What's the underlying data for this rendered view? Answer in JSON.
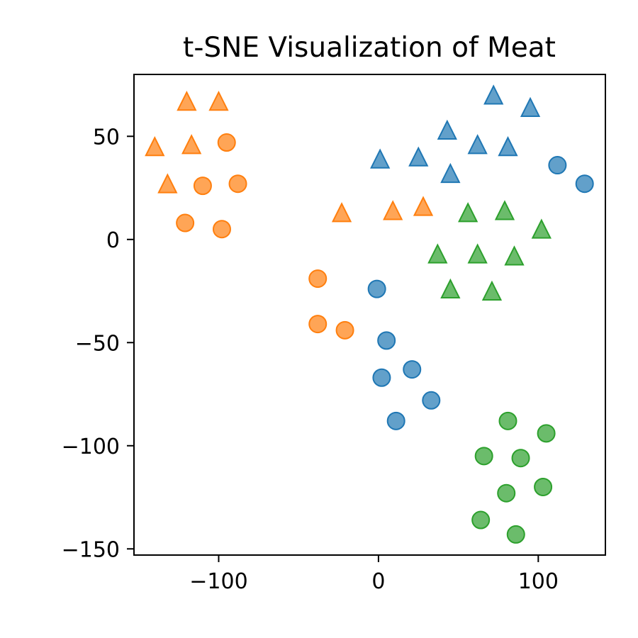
{
  "chart_data": {
    "type": "scatter",
    "title": "t-SNE Visualization of Meat",
    "xlabel": "",
    "ylabel": "",
    "xlim": [
      -153,
      142
    ],
    "ylim": [
      -153,
      80
    ],
    "xticks": [
      -100,
      0,
      100
    ],
    "yticks": [
      50,
      0,
      -50,
      -100,
      -150
    ],
    "xtick_labels": [
      "−100",
      "0",
      "100"
    ],
    "ytick_labels": [
      "50",
      "0",
      "−50",
      "−100",
      "−150"
    ],
    "grid": false,
    "legend": false,
    "colors": {
      "blue": "#1f77b4",
      "orange": "#ff7f0e",
      "green": "#2ca02c"
    },
    "series": [
      {
        "color": "#ff7f0e",
        "marker": "triangle",
        "points": [
          [
            -120,
            66
          ],
          [
            -100,
            66
          ],
          [
            -140,
            44
          ],
          [
            -117,
            45
          ],
          [
            -132,
            26
          ],
          [
            -23,
            12
          ],
          [
            9,
            13
          ],
          [
            28,
            15
          ]
        ]
      },
      {
        "color": "#ff7f0e",
        "marker": "circle",
        "points": [
          [
            -95,
            47
          ],
          [
            -110,
            26
          ],
          [
            -88,
            27
          ],
          [
            -121,
            8
          ],
          [
            -98,
            5
          ],
          [
            -38,
            -19
          ],
          [
            -38,
            -41
          ],
          [
            -21,
            -44
          ]
        ]
      },
      {
        "color": "#1f77b4",
        "marker": "triangle",
        "points": [
          [
            72,
            69
          ],
          [
            95,
            63
          ],
          [
            43,
            52
          ],
          [
            62,
            45
          ],
          [
            81,
            44
          ],
          [
            1,
            38
          ],
          [
            25,
            39
          ],
          [
            45,
            31
          ]
        ]
      },
      {
        "color": "#1f77b4",
        "marker": "circle",
        "points": [
          [
            112,
            36
          ],
          [
            129,
            27
          ],
          [
            -1,
            -24
          ],
          [
            5,
            -49
          ],
          [
            2,
            -67
          ],
          [
            21,
            -63
          ],
          [
            33,
            -78
          ],
          [
            11,
            -88
          ]
        ]
      },
      {
        "color": "#2ca02c",
        "marker": "triangle",
        "points": [
          [
            56,
            12
          ],
          [
            79,
            13
          ],
          [
            102,
            4
          ],
          [
            37,
            -8
          ],
          [
            62,
            -8
          ],
          [
            85,
            -9
          ],
          [
            45,
            -25
          ],
          [
            71,
            -26
          ]
        ]
      },
      {
        "color": "#2ca02c",
        "marker": "circle",
        "points": [
          [
            81,
            -88
          ],
          [
            105,
            -94
          ],
          [
            66,
            -105
          ],
          [
            89,
            -106
          ],
          [
            80,
            -123
          ],
          [
            103,
            -120
          ],
          [
            64,
            -136
          ],
          [
            86,
            -143
          ]
        ]
      }
    ]
  }
}
